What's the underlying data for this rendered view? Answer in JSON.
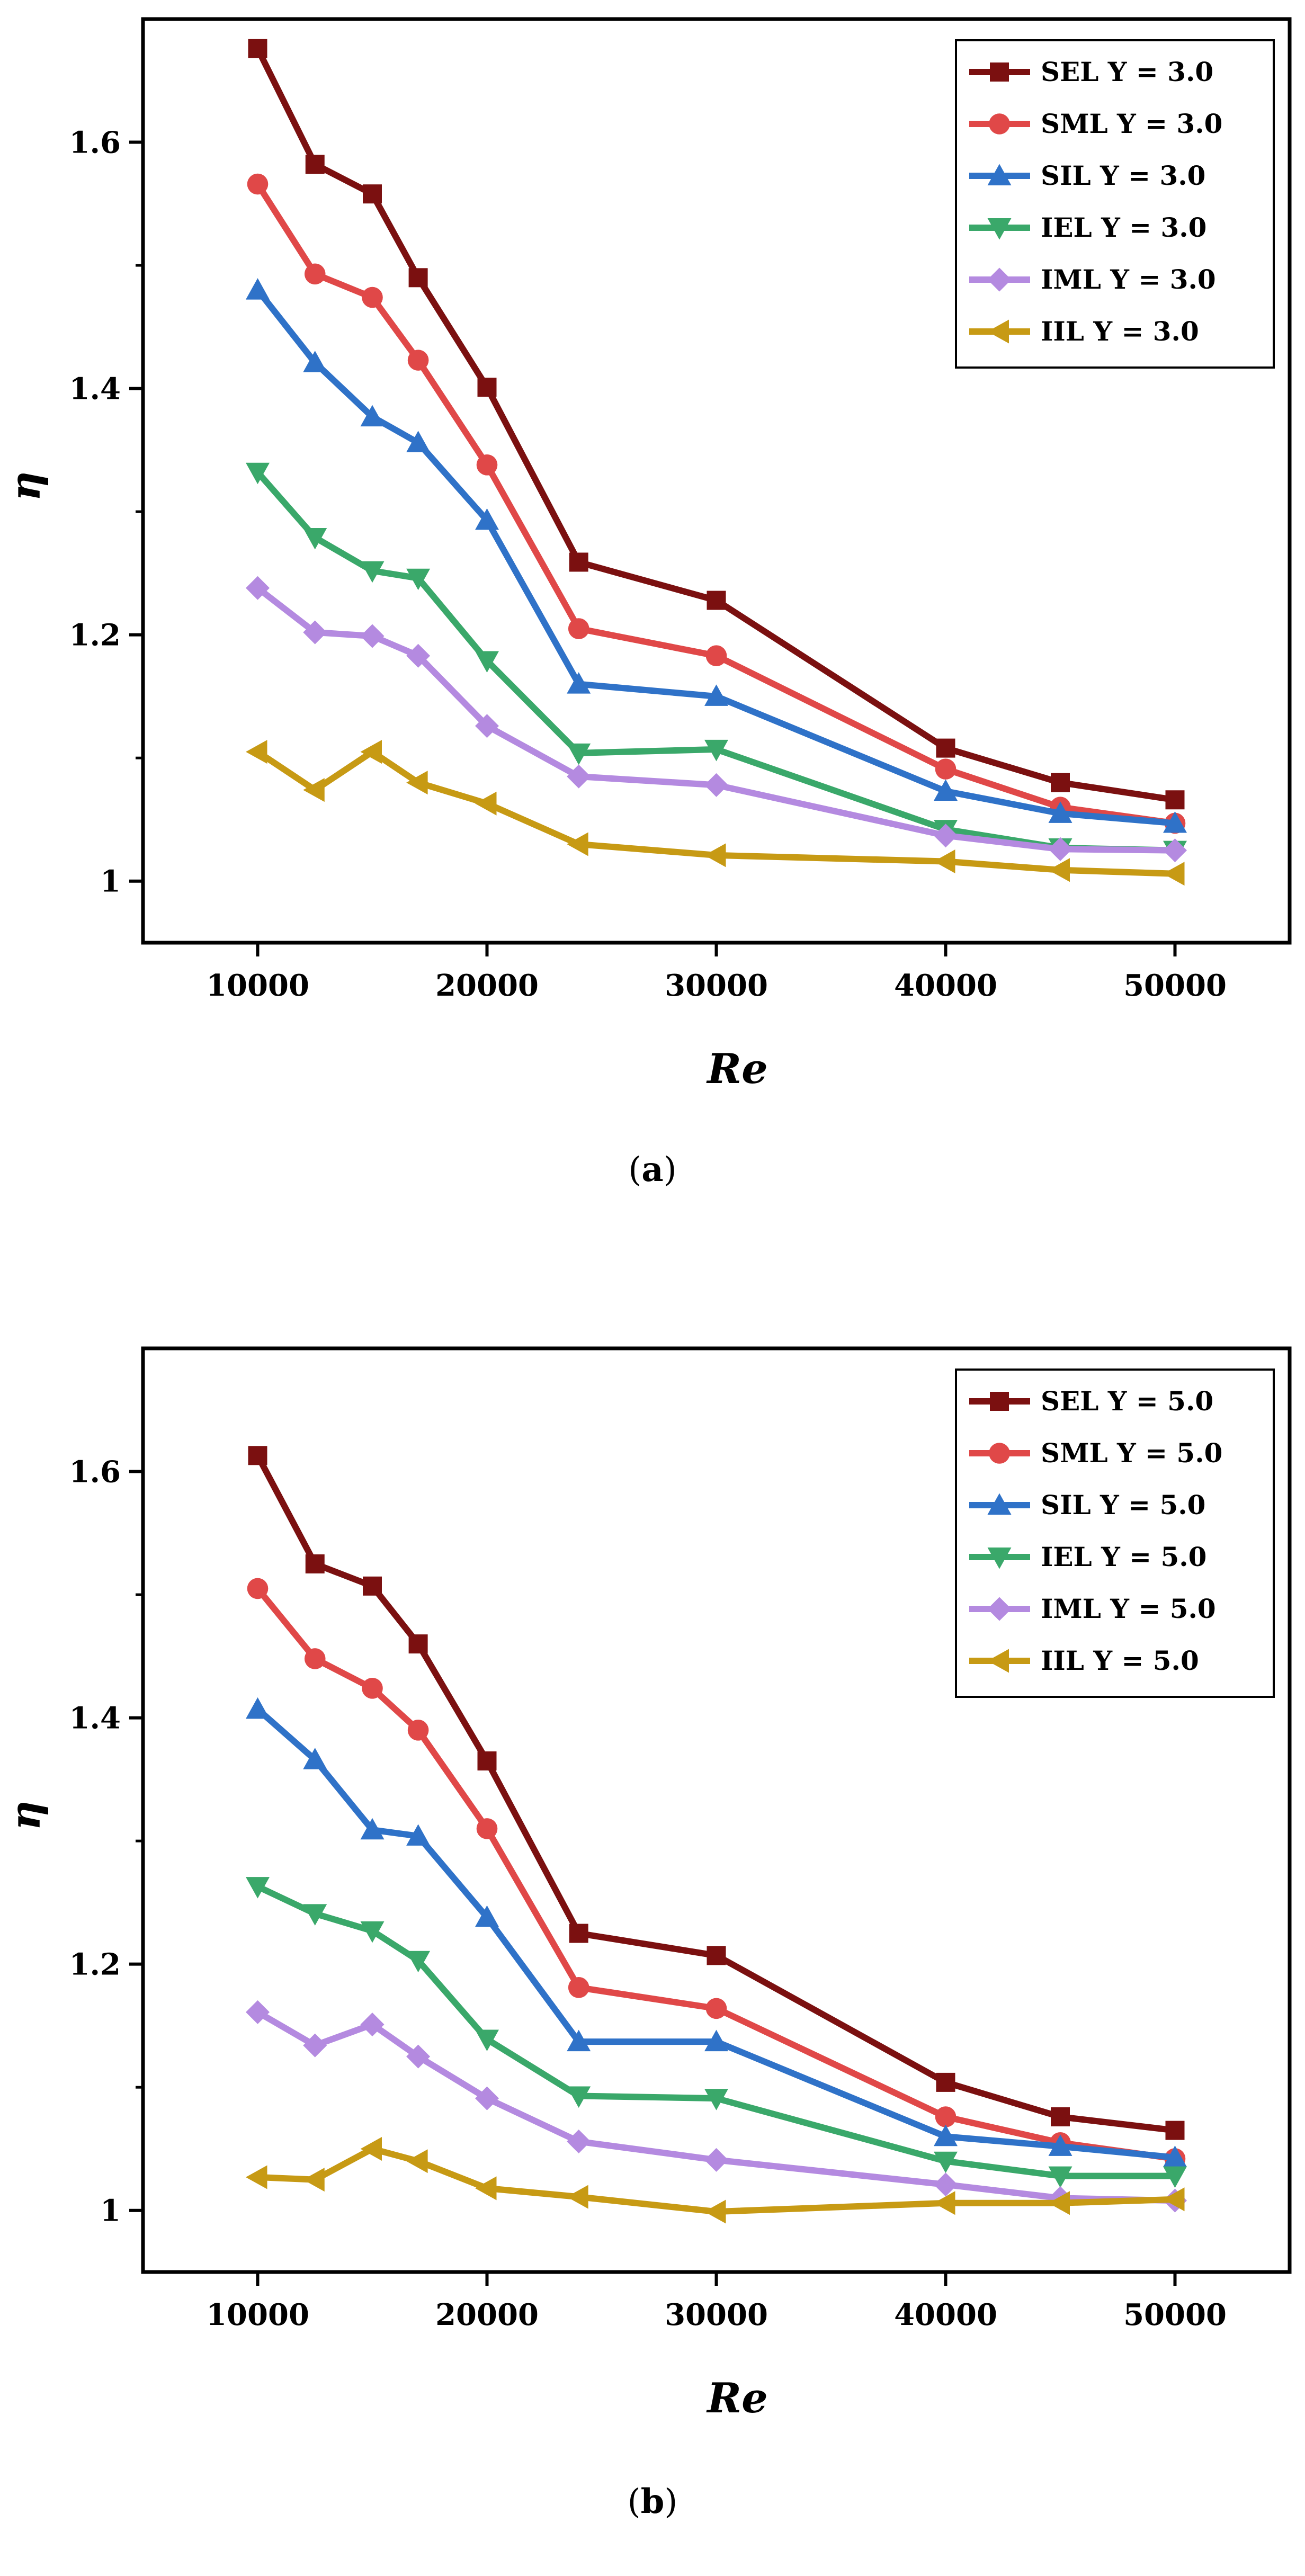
{
  "colors": {
    "SEL": "#7b1010",
    "SML": "#e04848",
    "SIL": "#2f72c8",
    "IEL": "#3aa86a",
    "IML": "#b48ae0",
    "IIL": "#c79a14"
  },
  "markers": {
    "SEL": "square",
    "SML": "circle",
    "SIL": "triangle-up",
    "IEL": "triangle-down",
    "IML": "diamond",
    "IIL": "triangle-left"
  },
  "chart_data": [
    {
      "type": "line",
      "xlabel": "Re",
      "ylabel": "η",
      "xlim": [
        5000,
        55000
      ],
      "ylim": [
        0.95,
        1.7
      ],
      "xticks": [
        10000,
        20000,
        30000,
        40000,
        50000
      ],
      "xtick_labels": [
        "10000",
        "20000",
        "30000",
        "40000",
        "50000"
      ],
      "yticks": [
        1.0,
        1.2,
        1.4,
        1.6
      ],
      "ytick_labels": [
        "1",
        "1.2",
        "1.4",
        "1.6"
      ],
      "legend_position": "top-right",
      "caption_letter": "a",
      "x": [
        10000,
        12500,
        15000,
        17000,
        20000,
        24000,
        30000,
        40000,
        45000,
        50000
      ],
      "series": [
        {
          "key": "SEL",
          "name": "SEL Y = 3.0",
          "values": [
            1.676,
            1.582,
            1.558,
            1.49,
            1.401,
            1.259,
            1.228,
            1.108,
            1.08,
            1.066
          ]
        },
        {
          "key": "SML",
          "name": "SML Y = 3.0",
          "values": [
            1.566,
            1.493,
            1.474,
            1.423,
            1.338,
            1.205,
            1.183,
            1.091,
            1.06,
            1.047
          ]
        },
        {
          "key": "SIL",
          "name": "SIL Y = 3.0",
          "values": [
            1.48,
            1.421,
            1.377,
            1.356,
            1.293,
            1.16,
            1.15,
            1.073,
            1.055,
            1.047
          ]
        },
        {
          "key": "IEL",
          "name": "IEL Y = 3.0",
          "values": [
            1.332,
            1.279,
            1.252,
            1.246,
            1.179,
            1.104,
            1.107,
            1.042,
            1.027,
            1.025
          ]
        },
        {
          "key": "IML",
          "name": "IML Y = 3.0",
          "values": [
            1.238,
            1.202,
            1.199,
            1.183,
            1.126,
            1.085,
            1.078,
            1.037,
            1.026,
            1.025
          ]
        },
        {
          "key": "IIL",
          "name": "IIL Y = 3.0",
          "values": [
            1.105,
            1.074,
            1.105,
            1.08,
            1.063,
            1.03,
            1.021,
            1.016,
            1.009,
            1.006
          ]
        }
      ]
    },
    {
      "type": "line",
      "xlabel": "Re",
      "ylabel": "η",
      "xlim": [
        5000,
        55000
      ],
      "ylim": [
        0.95,
        1.7
      ],
      "xticks": [
        10000,
        20000,
        30000,
        40000,
        50000
      ],
      "xtick_labels": [
        "10000",
        "20000",
        "30000",
        "40000",
        "50000"
      ],
      "yticks": [
        1.0,
        1.2,
        1.4,
        1.6
      ],
      "ytick_labels": [
        "1",
        "1.2",
        "1.4",
        "1.6"
      ],
      "legend_position": "top-right",
      "caption_letter": "b",
      "x": [
        10000,
        12500,
        15000,
        17000,
        20000,
        24000,
        30000,
        40000,
        45000,
        50000
      ],
      "series": [
        {
          "key": "SEL",
          "name": "SEL Y = 5.0",
          "values": [
            1.613,
            1.525,
            1.507,
            1.46,
            1.365,
            1.225,
            1.207,
            1.104,
            1.076,
            1.065
          ]
        },
        {
          "key": "SML",
          "name": "SML Y = 5.0",
          "values": [
            1.505,
            1.448,
            1.424,
            1.39,
            1.31,
            1.181,
            1.164,
            1.076,
            1.055,
            1.042
          ]
        },
        {
          "key": "SIL",
          "name": "SIL Y = 5.0",
          "values": [
            1.407,
            1.366,
            1.309,
            1.304,
            1.238,
            1.137,
            1.137,
            1.06,
            1.052,
            1.043
          ]
        },
        {
          "key": "IEL",
          "name": "IEL Y = 5.0",
          "values": [
            1.263,
            1.241,
            1.227,
            1.203,
            1.139,
            1.093,
            1.091,
            1.04,
            1.028,
            1.028
          ]
        },
        {
          "key": "IML",
          "name": "IML Y = 5.0",
          "values": [
            1.161,
            1.134,
            1.151,
            1.125,
            1.091,
            1.056,
            1.041,
            1.021,
            1.01,
            1.008
          ]
        },
        {
          "key": "IIL",
          "name": "IIL Y = 5.0",
          "values": [
            1.027,
            1.025,
            1.05,
            1.04,
            1.018,
            1.011,
            0.999,
            1.006,
            1.006,
            1.009
          ]
        }
      ]
    }
  ]
}
